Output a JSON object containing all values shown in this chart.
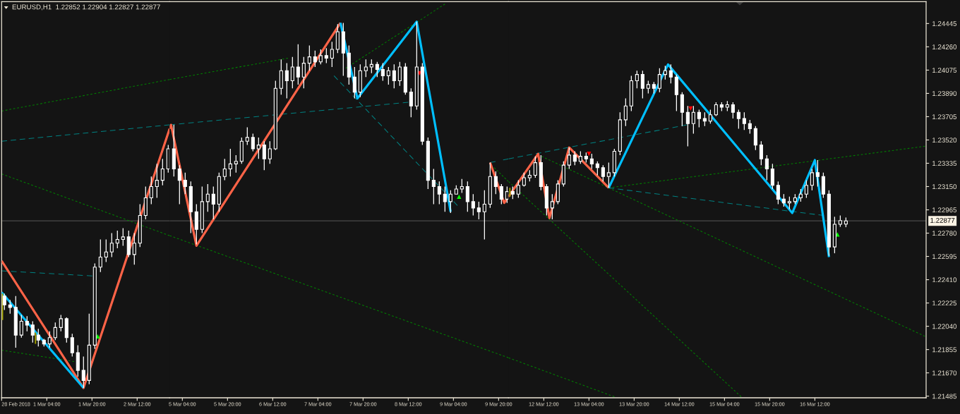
{
  "chart_data": [
    {
      "type": "candlestick",
      "title": "EURUSD,H1  1.22852 1.22904 1.22827 1.22877",
      "color": "#ffffff",
      "tick_labels": "x",
      "x": [
        "2018-02-28T13:00",
        "2018-02-28T15:00",
        "2018-02-28T17:00",
        "2018-02-28T19:00",
        "2018-02-28T21:00",
        "2018-02-28T23:00",
        "2018-03-01T01:00",
        "2018-03-01T03:00",
        "2018-03-01T05:00",
        "2018-03-01T07:00",
        "2018-03-01T09:00",
        "2018-03-01T11:00",
        "2018-03-01T13:00",
        "2018-03-01T15:00",
        "2018-03-01T17:00",
        "2018-03-01T19:00",
        "2018-03-01T21:00",
        "2018-03-01T23:00",
        "2018-03-02T01:00",
        "2018-03-02T03:00",
        "2018-03-02T05:00",
        "2018-03-02T07:00",
        "2018-03-02T09:00",
        "2018-03-02T11:00",
        "2018-03-02T13:00",
        "2018-03-02T15:00",
        "2018-03-02T17:00",
        "2018-03-02T19:00",
        "2018-03-02T21:00",
        "2018-03-02T23:00"
      ],
      "ohlc": [
        [
          1.2228,
          1.223,
          1.2217,
          1.2221
        ],
        [
          1.2221,
          1.2225,
          1.2214,
          1.2219
        ],
        [
          1.2219,
          1.2228,
          1.2187,
          1.2197
        ],
        [
          1.2197,
          1.2213,
          1.2195,
          1.2208
        ],
        [
          1.2208,
          1.2212,
          1.22,
          1.2205
        ],
        [
          1.2205,
          1.2208,
          1.2191,
          1.2197
        ],
        [
          1.2197,
          1.2202,
          1.2188,
          1.2193
        ],
        [
          1.2193,
          1.2194,
          1.2188,
          1.219
        ],
        [
          1.219,
          1.22,
          1.2187,
          1.2195
        ],
        [
          1.2195,
          1.2207,
          1.2193,
          1.2203
        ],
        [
          1.2203,
          1.2213,
          1.22,
          1.221
        ],
        [
          1.221,
          1.2211,
          1.2191,
          1.2195
        ],
        [
          1.2195,
          1.2198,
          1.218,
          1.2183
        ],
        [
          1.2183,
          1.2189,
          1.2164,
          1.2169
        ],
        [
          1.2169,
          1.218,
          1.2155,
          1.2161
        ],
        [
          1.2161,
          1.2214,
          1.2158,
          1.2189
        ],
        [
          1.2189,
          1.2254,
          1.2186,
          1.2251
        ],
        [
          1.2251,
          1.2273,
          1.2247,
          1.2259
        ],
        [
          1.2259,
          1.2273,
          1.2255,
          1.2263
        ],
        [
          1.2263,
          1.2278,
          1.2259,
          1.227
        ],
        [
          1.227,
          1.228,
          1.2266,
          1.2273
        ],
        [
          1.2273,
          1.2282,
          1.2268,
          1.2275
        ],
        [
          1.2275,
          1.228,
          1.2259,
          1.2261
        ],
        [
          1.2261,
          1.2278,
          1.2253,
          1.227
        ],
        [
          1.227,
          1.2301,
          1.2267,
          1.2292
        ],
        [
          1.2292,
          1.2315,
          1.2289,
          1.2306
        ],
        [
          1.2306,
          1.2323,
          1.2301,
          1.2315
        ],
        [
          1.2315,
          1.2333,
          1.2306,
          1.232
        ],
        [
          1.232,
          1.2337,
          1.2316,
          1.2329
        ],
        [
          1.2329,
          1.2348,
          1.2326,
          1.2345
        ]
      ],
      "xlim": [
        "2018-02-28T12:00",
        "2018-03-02T23:30"
      ],
      "xticks": [
        {
          "value": "2018-02-28T12:00",
          "label": "28 Feb 2018"
        },
        {
          "value": "2018-03-01T04:00",
          "label": "1 Mar 04:00"
        },
        {
          "value": "2018-03-01T20:00",
          "label": "1 Mar 20:00"
        },
        {
          "value": "2018-03-02T12:00",
          "label": "2 Mar 12:00"
        }
      ],
      "ylim": [
        1.21472,
        1.24619
      ],
      "ref_lines": [
        {
          "axis": "y",
          "value": 1.22877,
          "color": "#4a4a4a"
        }
      ],
      "series": [
        {
          "type": "line",
          "x": [
            "2018-02-28T12:00",
            "2018-03-02T23:30"
          ],
          "values": [
            1.2375,
            1.24
          ],
          "color": "#008000",
          "line_style": "dotted"
        },
        {
          "type": "line",
          "x": [
            "2018-02-28T12:00",
            "2018-03-02T23:30"
          ],
          "values": [
            1.2351,
            1.2364
          ],
          "color": "#008080",
          "line_style": "dashed"
        },
        {
          "type": "line",
          "x": [
            "2018-02-28T12:00",
            "2018-03-02T23:30"
          ],
          "values": [
            1.2325,
            1.2276
          ],
          "color": "#008000",
          "line_style": "dotted"
        },
        {
          "type": "line",
          "x": [
            "2018-02-28T12:00",
            "2018-03-01T20:06"
          ],
          "values": [
            1.2248,
            1.2244
          ],
          "color": "#008080",
          "line_style": "dashed"
        },
        {
          "type": "line",
          "x": [
            "2018-02-28T12:00",
            "2018-03-01T13:42"
          ],
          "values": [
            1.2185,
            1.2176
          ],
          "color": "#008000",
          "line_style": "dotted"
        },
        {
          "type": "line",
          "x": [
            "2018-02-28T12:00",
            "2018-03-01T17:00",
            "2018-03-02T23:30"
          ],
          "values": [
            1.2256,
            1.2155,
            1.2361
          ],
          "color": "#ff6347",
          "line_style": "solid"
        },
        {
          "type": "line",
          "x": [
            "2018-02-28T12:00",
            "2018-03-01T17:00"
          ],
          "values": [
            1.2231,
            1.2155
          ],
          "color": "#00bfff",
          "line_style": "solid"
        },
        {
          "type": "line",
          "x": [
            "2018-02-28T12:18",
            "2018-02-28T12:18"
          ],
          "values": [
            1.223,
            1.2209
          ],
          "color": "#a0a000",
          "line_style": "solid"
        },
        {
          "type": "line",
          "x": [
            "2018-03-01T00:00",
            "2018-03-01T00:00"
          ],
          "values": [
            1.2199,
            1.219
          ],
          "color": "#a0a000",
          "line_style": "solid"
        },
        {
          "type": "scatter",
          "x": [
            "2018-03-01T22:00"
          ],
          "values": [
            1.2196
          ],
          "color": "#00ff00",
          "marker": "triangle"
        }
      ]
    },
    {
      "type": "candlestick",
      "color": "#ffffff",
      "tick_labels": "x",
      "x": [
        "2018-03-05T01:00",
        "2018-03-05T03:00",
        "2018-03-05T05:00",
        "2018-03-05T07:00",
        "2018-03-05T09:00",
        "2018-03-05T11:00",
        "2018-03-05T13:00",
        "2018-03-05T15:00",
        "2018-03-05T17:00",
        "2018-03-05T19:00",
        "2018-03-05T21:00",
        "2018-03-05T23:00",
        "2018-03-06T01:00",
        "2018-03-06T03:00",
        "2018-03-06T05:00",
        "2018-03-06T07:00",
        "2018-03-06T09:00",
        "2018-03-06T11:00",
        "2018-03-06T13:00",
        "2018-03-06T15:00",
        "2018-03-06T17:00",
        "2018-03-06T19:00",
        "2018-03-06T21:00",
        "2018-03-06T23:00",
        "2018-03-07T01:00",
        "2018-03-07T03:00",
        "2018-03-07T05:00",
        "2018-03-07T07:00",
        "2018-03-07T09:00",
        "2018-03-07T11:00",
        "2018-03-07T13:00",
        "2018-03-07T15:00",
        "2018-03-07T17:00",
        "2018-03-07T19:00",
        "2018-03-07T21:00",
        "2018-03-07T23:00",
        "2018-03-08T01:00",
        "2018-03-08T03:00",
        "2018-03-08T05:00",
        "2018-03-08T07:00",
        "2018-03-08T09:00",
        "2018-03-08T11:00",
        "2018-03-08T13:00",
        "2018-03-08T15:00",
        "2018-03-08T17:00",
        "2018-03-08T19:00",
        "2018-03-08T21:00",
        "2018-03-08T23:00",
        "2018-03-09T01:00",
        "2018-03-09T03:00",
        "2018-03-09T05:00",
        "2018-03-09T07:00",
        "2018-03-09T09:00",
        "2018-03-09T11:00",
        "2018-03-09T13:00",
        "2018-03-09T15:00",
        "2018-03-09T17:00",
        "2018-03-09T19:00",
        "2018-03-09T21:00",
        "2018-03-09T23:00"
      ],
      "ohlc": [
        [
          1.2345,
          1.2364,
          1.2323,
          1.2329
        ],
        [
          1.2329,
          1.2332,
          1.2301,
          1.232
        ],
        [
          1.232,
          1.2326,
          1.2309,
          1.2315
        ],
        [
          1.2315,
          1.2319,
          1.2278,
          1.2295
        ],
        [
          1.2295,
          1.2301,
          1.2269,
          1.2281
        ],
        [
          1.2281,
          1.2315,
          1.2278,
          1.2303
        ],
        [
          1.2303,
          1.2317,
          1.2295,
          1.2309
        ],
        [
          1.2309,
          1.2315,
          1.2289,
          1.2301
        ],
        [
          1.2301,
          1.2326,
          1.2295,
          1.2323
        ],
        [
          1.2323,
          1.2337,
          1.232,
          1.2329
        ],
        [
          1.2329,
          1.2345,
          1.2323,
          1.2333
        ],
        [
          1.2333,
          1.234,
          1.2326,
          1.2335
        ],
        [
          1.2335,
          1.2354,
          1.2333,
          1.2351
        ],
        [
          1.2351,
          1.2362,
          1.2348,
          1.2354
        ],
        [
          1.2354,
          1.2357,
          1.2343,
          1.2345
        ],
        [
          1.2345,
          1.2354,
          1.2337,
          1.2348
        ],
        [
          1.2348,
          1.2351,
          1.2328,
          1.2337
        ],
        [
          1.2337,
          1.2351,
          1.2333,
          1.2345
        ],
        [
          1.2345,
          1.2399,
          1.2344,
          1.2393
        ],
        [
          1.2393,
          1.2416,
          1.2388,
          1.2407
        ],
        [
          1.2407,
          1.2413,
          1.2385,
          1.2399
        ],
        [
          1.2399,
          1.2418,
          1.2393,
          1.241
        ],
        [
          1.241,
          1.2428,
          1.2396,
          1.2402
        ],
        [
          1.2402,
          1.2418,
          1.2393,
          1.2413
        ],
        [
          1.2413,
          1.2427,
          1.2407,
          1.2418
        ],
        [
          1.2418,
          1.2423,
          1.241,
          1.2414
        ],
        [
          1.2414,
          1.2424,
          1.2412,
          1.2419
        ],
        [
          1.2419,
          1.2425,
          1.2413,
          1.2417
        ],
        [
          1.2417,
          1.243,
          1.241,
          1.2424
        ],
        [
          1.2424,
          1.2444,
          1.2421,
          1.2438
        ],
        [
          1.2438,
          1.2445,
          1.2403,
          1.2421
        ],
        [
          1.2421,
          1.2427,
          1.2396,
          1.2402
        ],
        [
          1.2402,
          1.241,
          1.2385,
          1.239
        ],
        [
          1.239,
          1.2412,
          1.2386,
          1.2407
        ],
        [
          1.2407,
          1.2416,
          1.2402,
          1.241
        ],
        [
          1.241,
          1.2416,
          1.2405,
          1.2412
        ],
        [
          1.2412,
          1.2414,
          1.2402,
          1.2408
        ],
        [
          1.2408,
          1.2413,
          1.2399,
          1.2403
        ],
        [
          1.2403,
          1.241,
          1.2396,
          1.2407
        ],
        [
          1.2407,
          1.2412,
          1.2393,
          1.2399
        ],
        [
          1.2399,
          1.2414,
          1.2395,
          1.241
        ],
        [
          1.241,
          1.2413,
          1.2388,
          1.239
        ],
        [
          1.239,
          1.2393,
          1.237,
          1.2379
        ],
        [
          1.2379,
          1.2446,
          1.2376,
          1.241
        ],
        [
          1.241,
          1.2413,
          1.2348,
          1.2351
        ],
        [
          1.2351,
          1.2354,
          1.2313,
          1.232
        ],
        [
          1.232,
          1.2329,
          1.2301,
          1.2315
        ],
        [
          1.2315,
          1.2319,
          1.2301,
          1.2309
        ],
        [
          1.2309,
          1.2315,
          1.2295,
          1.2303
        ],
        [
          1.2303,
          1.2312,
          1.2294,
          1.2309
        ],
        [
          1.2309,
          1.2316,
          1.2309,
          1.2313
        ],
        [
          1.2313,
          1.2321,
          1.231,
          1.2315
        ],
        [
          1.2315,
          1.2319,
          1.2295,
          1.2303
        ],
        [
          1.2303,
          1.2309,
          1.2292,
          1.2298
        ],
        [
          1.2298,
          1.2303,
          1.2289,
          1.2295
        ],
        [
          1.2295,
          1.2312,
          1.2273,
          1.2301
        ],
        [
          1.2301,
          1.2334,
          1.2298,
          1.2323
        ],
        [
          1.2323,
          1.2327,
          1.2309,
          1.2315
        ],
        [
          1.2315,
          1.2317,
          1.2301,
          1.2305
        ],
        [
          1.2305,
          1.2315,
          1.2302,
          1.2311
        ]
      ],
      "xlim": [
        "2018-03-04T23:30",
        "2018-03-09T23:30"
      ],
      "xticks": [
        {
          "value": "2018-03-05T04:00",
          "label": "5 Mar 04:00"
        },
        {
          "value": "2018-03-05T20:00",
          "label": "5 Mar 20:00"
        },
        {
          "value": "2018-03-06T12:00",
          "label": "6 Mar 12:00"
        },
        {
          "value": "2018-03-07T04:00",
          "label": "7 Mar 04:00"
        },
        {
          "value": "2018-03-07T20:00",
          "label": "7 Mar 20:00"
        },
        {
          "value": "2018-03-08T12:00",
          "label": "8 Mar 12:00"
        },
        {
          "value": "2018-03-09T04:00",
          "label": "9 Mar 04:00"
        },
        {
          "value": "2018-03-09T20:00",
          "label": "9 Mar 20:00"
        }
      ],
      "ylim": [
        1.21472,
        1.24619
      ],
      "ref_lines": [
        {
          "axis": "y",
          "value": 1.22877,
          "color": "#4a4a4a"
        }
      ],
      "series": [
        {
          "type": "line",
          "x": [
            "2018-03-04T23:30",
            "2018-03-06T17:24"
          ],
          "values": [
            1.24,
            1.2417
          ],
          "color": "#008000",
          "line_style": "dotted"
        },
        {
          "type": "line",
          "x": [
            "2018-03-07T13:54",
            "2018-03-09T01:00"
          ],
          "values": [
            1.2409,
            1.246
          ],
          "color": "#008000",
          "line_style": "dotted"
        },
        {
          "type": "line",
          "x": [
            "2018-03-04T23:30",
            "2018-03-08T12:00"
          ],
          "values": [
            1.2364,
            1.2382
          ],
          "color": "#008080",
          "line_style": "dashed"
        },
        {
          "type": "line",
          "x": [
            "2018-03-04T23:30",
            "2018-03-09T23:30"
          ],
          "values": [
            1.2276,
            1.2179
          ],
          "color": "#008000",
          "line_style": "dotted"
        },
        {
          "type": "line",
          "x": [
            "2018-03-07T09:42",
            "2018-03-09T05:24"
          ],
          "values": [
            1.2403,
            1.23
          ],
          "color": "#008080",
          "line_style": "dashed"
        },
        {
          "type": "line",
          "x": [
            "2018-03-09T17:00",
            "2018-03-09T23:30"
          ],
          "values": [
            1.2334,
            1.2337
          ],
          "color": "#008080",
          "line_style": "dashed"
        },
        {
          "type": "line",
          "x": [
            "2018-03-09T18:24",
            "2018-03-09T23:30"
          ],
          "values": [
            1.233,
            1.2319
          ],
          "color": "#008000",
          "line_style": "dotted"
        },
        {
          "type": "line",
          "x": [
            "2018-03-04T23:30",
            "2018-03-05T00:00",
            "2018-03-05T09:00",
            "2018-03-07T12:00"
          ],
          "values": [
            1.2361,
            1.2364,
            1.2268,
            1.2445
          ],
          "color": "#ff6347",
          "line_style": "solid"
        },
        {
          "type": "line",
          "x": [
            "2018-03-09T17:00",
            "2018-03-09T22:00",
            "2018-03-09T23:30"
          ],
          "values": [
            1.2334,
            1.2302,
            1.2307
          ],
          "color": "#ff6347",
          "line_style": "solid"
        },
        {
          "type": "line",
          "x": [
            "2018-03-07T12:00",
            "2018-03-07T18:00",
            "2018-03-08T15:00",
            "2018-03-09T03:00"
          ],
          "values": [
            1.2445,
            1.2385,
            1.2446,
            1.2295
          ],
          "color": "#00bfff",
          "line_style": "solid"
        },
        {
          "type": "scatter",
          "x": [
            "2018-03-09T06:00"
          ],
          "values": [
            1.2307
          ],
          "color": "#00ff00",
          "marker": "triangle"
        },
        {
          "type": "scatter",
          "x": [
            "2018-03-08T16:00"
          ],
          "values": [
            1.2405
          ],
          "color": "#ff0000",
          "marker": "triangle_down"
        }
      ]
    },
    {
      "type": "candlestick",
      "color": "#ffffff",
      "x": [
        "2018-03-12T01:00",
        "2018-03-12T03:00",
        "2018-03-12T05:00",
        "2018-03-12T07:00",
        "2018-03-12T09:00",
        "2018-03-12T11:00",
        "2018-03-12T13:00",
        "2018-03-12T15:00",
        "2018-03-12T17:00",
        "2018-03-12T19:00",
        "2018-03-12T21:00",
        "2018-03-12T23:00",
        "2018-03-13T01:00",
        "2018-03-13T03:00",
        "2018-03-13T05:00",
        "2018-03-13T07:00",
        "2018-03-13T09:00",
        "2018-03-13T11:00",
        "2018-03-13T13:00",
        "2018-03-13T15:00",
        "2018-03-13T17:00",
        "2018-03-13T19:00",
        "2018-03-13T21:00",
        "2018-03-13T23:00",
        "2018-03-14T01:00",
        "2018-03-14T03:00",
        "2018-03-14T05:00",
        "2018-03-14T07:00",
        "2018-03-14T09:00",
        "2018-03-14T11:00",
        "2018-03-14T13:00",
        "2018-03-14T15:00",
        "2018-03-14T17:00",
        "2018-03-14T19:00",
        "2018-03-14T21:00",
        "2018-03-14T23:00",
        "2018-03-15T01:00",
        "2018-03-15T03:00",
        "2018-03-15T05:00",
        "2018-03-15T07:00",
        "2018-03-15T09:00",
        "2018-03-15T11:00",
        "2018-03-15T13:00",
        "2018-03-15T15:00",
        "2018-03-15T17:00",
        "2018-03-15T19:00",
        "2018-03-15T21:00",
        "2018-03-15T23:00",
        "2018-03-16T01:00",
        "2018-03-16T03:00",
        "2018-03-16T05:00",
        "2018-03-16T07:00",
        "2018-03-16T09:00",
        "2018-03-16T11:00",
        "2018-03-16T13:00",
        "2018-03-16T15:00",
        "2018-03-16T17:00",
        "2018-03-16T19:00",
        "2018-03-16T21:00",
        "2018-03-16T23:00"
      ],
      "ohlc": [
        [
          1.2311,
          1.2315,
          1.2305,
          1.2309
        ],
        [
          1.2309,
          1.232,
          1.2306,
          1.2316
        ],
        [
          1.2316,
          1.2326,
          1.2315,
          1.2322
        ],
        [
          1.2322,
          1.2328,
          1.2319,
          1.2324
        ],
        [
          1.2324,
          1.2339,
          1.2322,
          1.2334
        ],
        [
          1.2334,
          1.234,
          1.2312,
          1.2315
        ],
        [
          1.2315,
          1.2317,
          1.2292,
          1.2298
        ],
        [
          1.2298,
          1.2309,
          1.2289,
          1.2303
        ],
        [
          1.2303,
          1.232,
          1.2301,
          1.2317
        ],
        [
          1.2317,
          1.2335,
          1.2315,
          1.2332
        ],
        [
          1.2332,
          1.2346,
          1.2329,
          1.234
        ],
        [
          1.234,
          1.2343,
          1.2332,
          1.2335
        ],
        [
          1.2335,
          1.2343,
          1.2333,
          1.2339
        ],
        [
          1.2339,
          1.2342,
          1.2334,
          1.2337
        ],
        [
          1.2337,
          1.2341,
          1.2329,
          1.2333
        ],
        [
          1.2333,
          1.2335,
          1.2324,
          1.233
        ],
        [
          1.233,
          1.2332,
          1.2319,
          1.2323
        ],
        [
          1.2323,
          1.2334,
          1.2314,
          1.2326
        ],
        [
          1.2326,
          1.2345,
          1.2323,
          1.2343
        ],
        [
          1.2343,
          1.2374,
          1.234,
          1.2368
        ],
        [
          1.2368,
          1.2385,
          1.2363,
          1.2379
        ],
        [
          1.2379,
          1.2403,
          1.2375,
          1.2399
        ],
        [
          1.2399,
          1.2407,
          1.2393,
          1.2404
        ],
        [
          1.2404,
          1.2407,
          1.2385,
          1.2393
        ],
        [
          1.2393,
          1.2399,
          1.2389,
          1.2396
        ],
        [
          1.2396,
          1.2398,
          1.2389,
          1.2393
        ],
        [
          1.2393,
          1.2409,
          1.239,
          1.2404
        ],
        [
          1.2404,
          1.2411,
          1.24,
          1.2407
        ],
        [
          1.2407,
          1.2412,
          1.2397,
          1.2402
        ],
        [
          1.2402,
          1.2404,
          1.2375,
          1.2388
        ],
        [
          1.2388,
          1.239,
          1.2363,
          1.2374
        ],
        [
          1.2374,
          1.2379,
          1.2347,
          1.2365
        ],
        [
          1.2365,
          1.2379,
          1.2357,
          1.2374
        ],
        [
          1.2374,
          1.2376,
          1.2362,
          1.2369
        ],
        [
          1.2369,
          1.2374,
          1.2363,
          1.2367
        ],
        [
          1.2367,
          1.2376,
          1.2365,
          1.2372
        ],
        [
          1.2372,
          1.2382,
          1.2371,
          1.238
        ],
        [
          1.238,
          1.2382,
          1.2375,
          1.2378
        ],
        [
          1.2378,
          1.2383,
          1.2375,
          1.238
        ],
        [
          1.238,
          1.2382,
          1.2369,
          1.2374
        ],
        [
          1.2374,
          1.2376,
          1.2361,
          1.2369
        ],
        [
          1.2369,
          1.2374,
          1.236,
          1.2365
        ],
        [
          1.2365,
          1.2368,
          1.2357,
          1.2361
        ],
        [
          1.2361,
          1.2363,
          1.2344,
          1.2348
        ],
        [
          1.2348,
          1.2351,
          1.2332,
          1.2337
        ],
        [
          1.2337,
          1.234,
          1.232,
          1.2329
        ],
        [
          1.2329,
          1.2333,
          1.2313,
          1.2316
        ],
        [
          1.2316,
          1.2319,
          1.2301,
          1.2305
        ],
        [
          1.2305,
          1.2309,
          1.2299,
          1.2302
        ],
        [
          1.2302,
          1.2307,
          1.2297,
          1.2303
        ],
        [
          1.2303,
          1.2309,
          1.2301,
          1.2306
        ],
        [
          1.2306,
          1.2313,
          1.2303,
          1.2309
        ],
        [
          1.2309,
          1.232,
          1.2306,
          1.2316
        ],
        [
          1.2316,
          1.2329,
          1.2312,
          1.2326
        ],
        [
          1.2326,
          1.2336,
          1.2315,
          1.2323
        ],
        [
          1.2323,
          1.2326,
          1.2306,
          1.2309
        ],
        [
          1.2309,
          1.2312,
          1.226,
          1.2267
        ],
        [
          1.2267,
          1.2291,
          1.2262,
          1.2285
        ],
        [
          1.2285,
          1.2292,
          1.2283,
          1.2288
        ],
        [
          1.22852,
          1.22904,
          1.22827,
          1.22877
        ]
      ],
      "xlim": [
        "2018-03-11T23:30",
        "2018-03-18T03:24"
      ],
      "xticks": [
        {
          "value": "2018-03-12T12:00",
          "label": "12 Mar 12:00"
        },
        {
          "value": "2018-03-13T04:00",
          "label": "13 Mar 04:00"
        },
        {
          "value": "2018-03-13T20:00",
          "label": "13 Mar 20:00"
        },
        {
          "value": "2018-03-14T12:00",
          "label": "14 Mar 12:00"
        },
        {
          "value": "2018-03-15T04:00",
          "label": "15 Mar 04:00"
        },
        {
          "value": "2018-03-15T20:00",
          "label": "15 Mar 20:00"
        },
        {
          "value": "2018-03-16T12:00",
          "label": "16 Mar 12:00"
        }
      ],
      "ylim": [
        1.21472,
        1.24619
      ],
      "yticks": [
        1.24445,
        {
          "value": 1.2426,
          "label": "1.24260"
        },
        1.24075,
        {
          "value": 1.2389,
          "label": "1.23890"
        },
        1.23705,
        {
          "value": 1.2352,
          "label": "1.23520"
        },
        1.23335,
        {
          "value": 1.2315,
          "label": "1.23150"
        },
        1.22965,
        {
          "value": 1.2278,
          "label": "1.22780"
        },
        1.22595,
        {
          "value": 1.2241,
          "label": "1.22410"
        },
        1.22225,
        {
          "value": 1.2204,
          "label": "1.22040"
        },
        1.21855,
        {
          "value": 1.2167,
          "label": "1.21670"
        },
        1.21485
      ],
      "ref_lines": [
        {
          "axis": "y",
          "value": 1.22877,
          "label": "1.22877",
          "color": "#4a4a4a"
        }
      ],
      "series": [
        {
          "type": "line",
          "x": [
            "2018-03-11T23:30",
            "2018-03-13T13:00"
          ],
          "values": [
            1.2179,
            1.2148
          ],
          "color": "#008000",
          "line_style": "dotted"
        },
        {
          "type": "line",
          "x": [
            "2018-03-11T23:30",
            "2018-03-14T14:42"
          ],
          "values": [
            1.2337,
            1.2364
          ],
          "color": "#008080",
          "line_style": "dashed"
        },
        {
          "type": "line",
          "x": [
            "2018-03-11T23:30",
            "2018-03-15T09:54"
          ],
          "values": [
            1.2319,
            1.2148
          ],
          "color": "#008000",
          "line_style": "dotted"
        },
        {
          "type": "line",
          "x": [
            "2018-03-12T11:12",
            "2018-03-18T03:00"
          ],
          "values": [
            1.2339,
            1.2196
          ],
          "color": "#008000",
          "line_style": "dotted"
        },
        {
          "type": "line",
          "x": [
            "2018-03-13T11:00",
            "2018-03-18T03:00"
          ],
          "values": [
            1.2314,
            1.2347
          ],
          "color": "#008000",
          "line_style": "dotted"
        },
        {
          "type": "line",
          "x": [
            "2018-03-13T11:00",
            "2018-03-16T15:12"
          ],
          "values": [
            1.2314,
            1.2292
          ],
          "color": "#008080",
          "line_style": "dashed"
        },
        {
          "type": "line",
          "x": [
            "2018-03-11T23:30",
            "2018-03-12T10:00",
            "2018-03-12T14:00",
            "2018-03-12T21:00",
            "2018-03-13T11:00"
          ],
          "values": [
            1.2307,
            1.2341,
            1.229,
            1.2346,
            1.2314
          ],
          "color": "#ff6347",
          "line_style": "solid"
        },
        {
          "type": "line",
          "x": [
            "2018-03-13T11:00",
            "2018-03-14T08:00",
            "2018-03-16T04:00",
            "2018-03-16T12:00",
            "2018-03-16T17:00"
          ],
          "values": [
            1.2314,
            1.2412,
            1.2294,
            1.2336,
            1.2259
          ],
          "color": "#00bfff",
          "line_style": "solid"
        },
        {
          "type": "line",
          "x": [
            "2018-03-12T00:00",
            "2018-03-12T00:00"
          ],
          "values": [
            1.2314,
            1.2307
          ],
          "color": "#a0a000",
          "line_style": "solid"
        },
        {
          "type": "scatter",
          "x": [
            "2018-03-16T20:00"
          ],
          "values": [
            1.2277
          ],
          "color": "#00ff00",
          "marker": "triangle"
        },
        {
          "type": "scatter",
          "x": [
            "2018-03-13T04:00",
            "2018-03-14T16:00"
          ],
          "values": [
            1.2341,
            1.2377
          ],
          "color": "#ff0000",
          "marker": "triangle_down"
        }
      ]
    }
  ]
}
